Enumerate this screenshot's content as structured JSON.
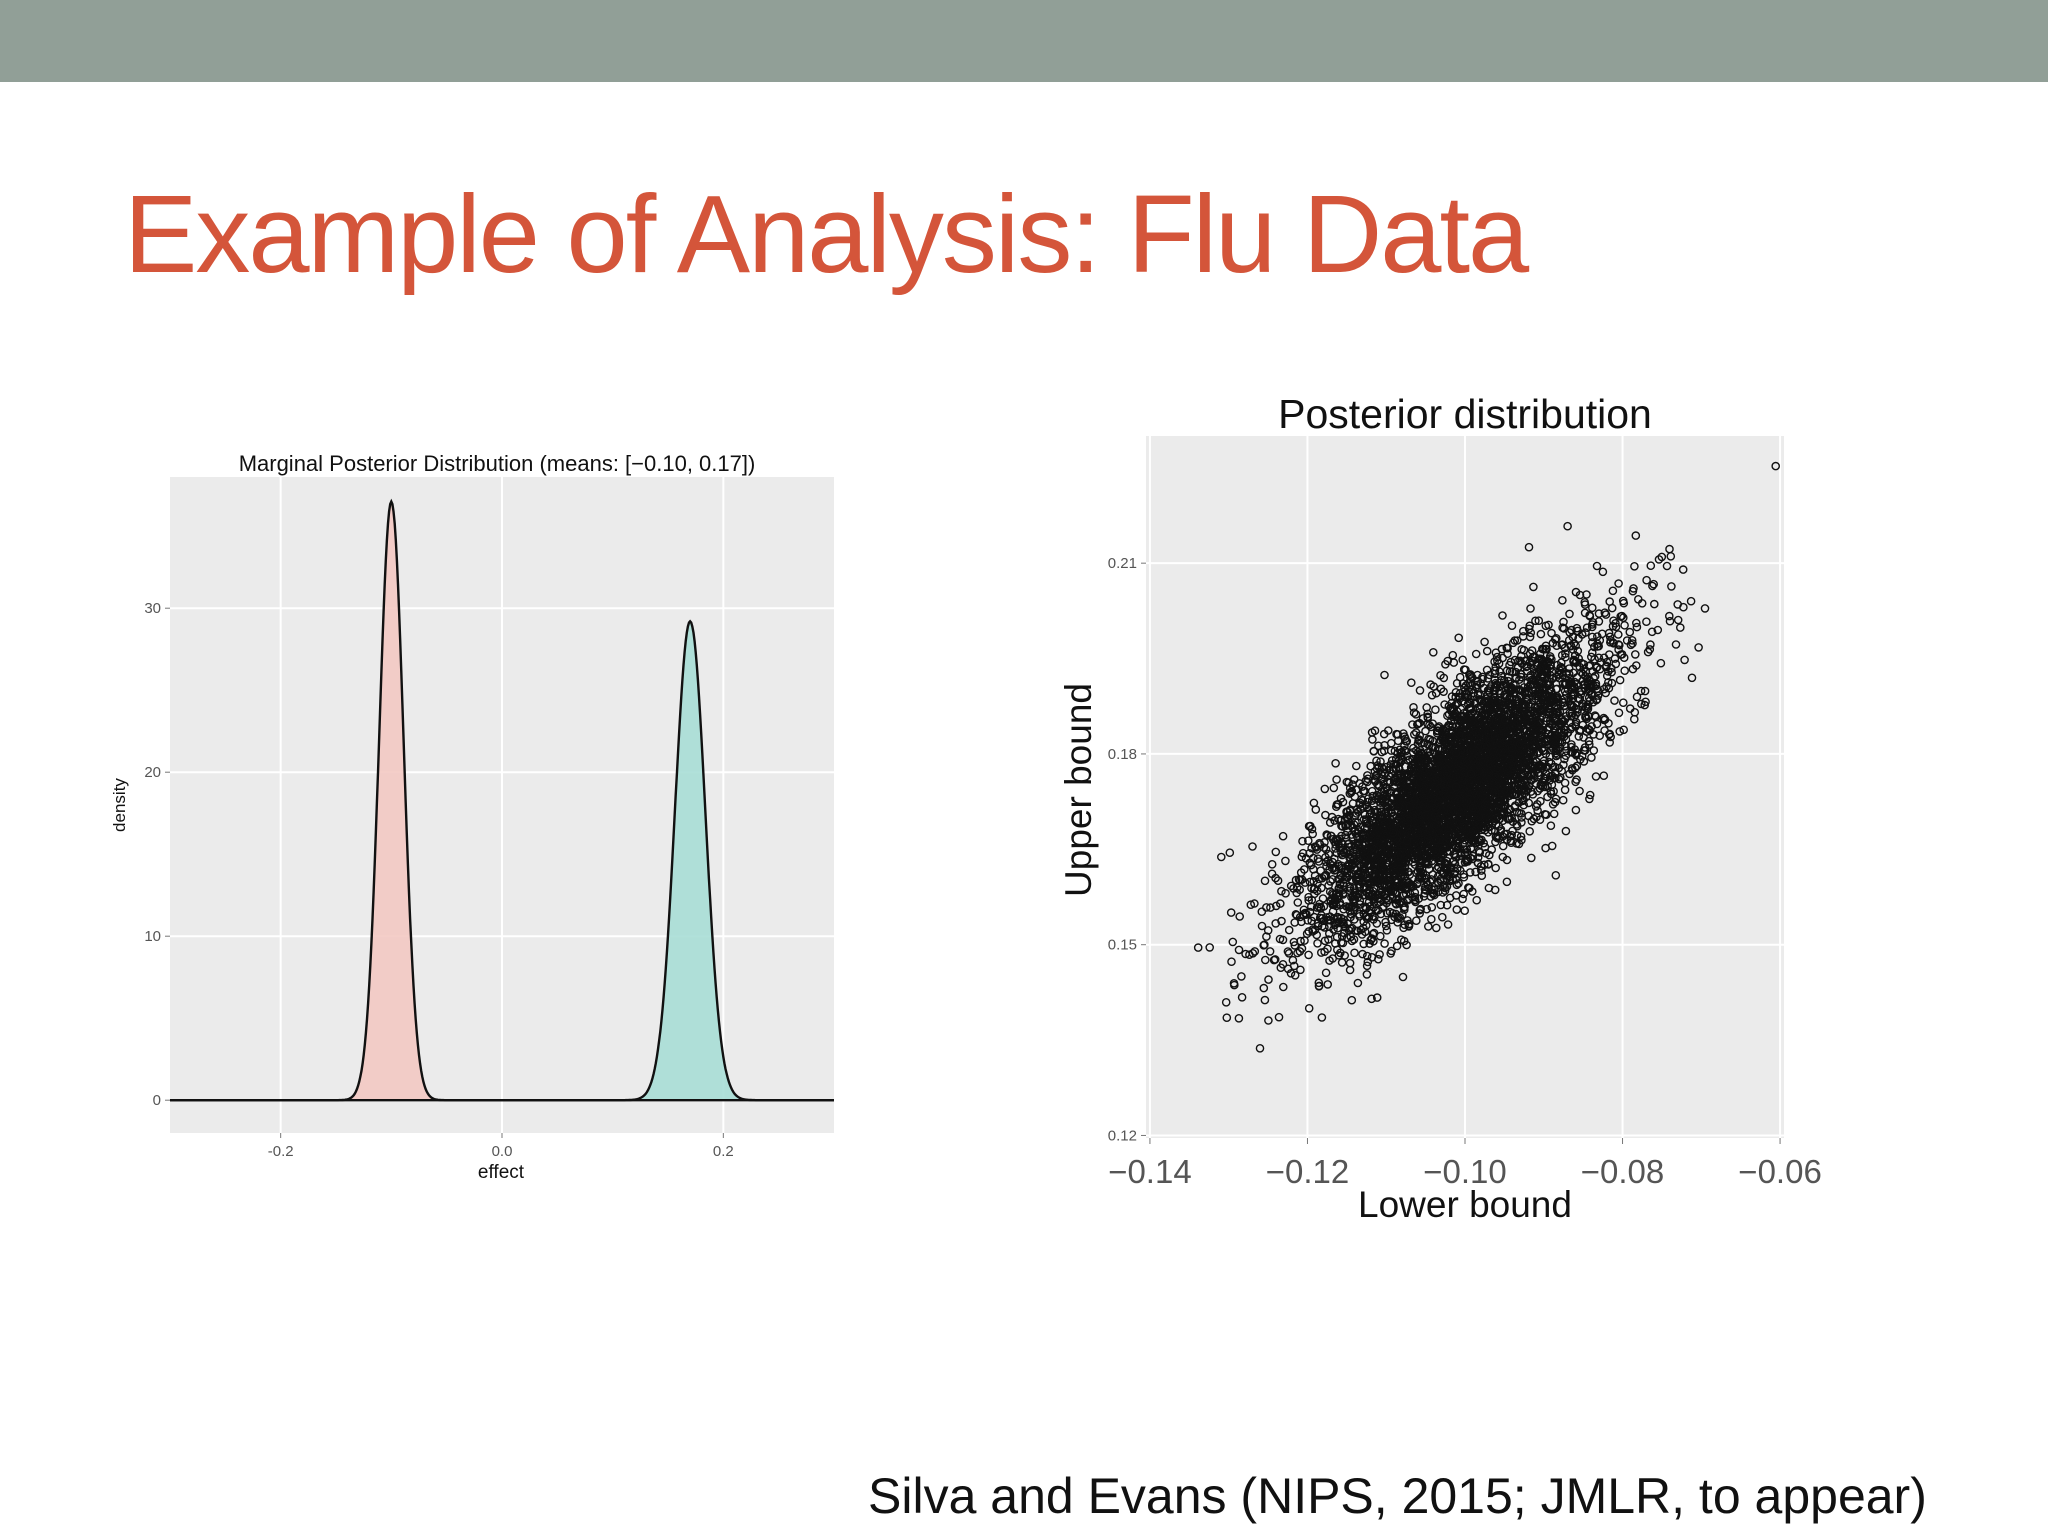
{
  "slide": {
    "title": "Example of Analysis: Flu Data",
    "citation": "Silva and Evans (NIPS, 2015; JMLR, to appear)",
    "colors": {
      "top_band": "#919f97",
      "title": "#d4553a",
      "panel_bg": "#ebebeb",
      "grid": "#ffffff",
      "density_fill_1": "#f3c9c3",
      "density_fill_2": "#a9ded6",
      "line": "#111111"
    }
  },
  "chart_data": [
    {
      "type": "area",
      "title": "Marginal Posterior Distribution (means: [−0.10, 0.17])",
      "xlabel": "effect",
      "ylabel": "density",
      "xlim": [
        -0.3,
        0.3
      ],
      "ylim": [
        -2,
        38
      ],
      "x_ticks": [
        -0.2,
        0.0,
        0.2
      ],
      "x_tick_labels": [
        "-0.2",
        "0.0",
        "0.2"
      ],
      "y_ticks": [
        0,
        10,
        20,
        30
      ],
      "y_tick_labels": [
        "0",
        "10",
        "20",
        "30"
      ],
      "grid": true,
      "legend": "none",
      "series": [
        {
          "mean": -0.1,
          "sd": 0.011,
          "peak_density": 36.5,
          "x_range": [
            -0.3,
            0.3
          ]
        },
        {
          "mean": 0.17,
          "sd": 0.0137,
          "peak_density": 29.2,
          "x_range": [
            -0.3,
            0.3
          ]
        }
      ]
    },
    {
      "type": "scatter",
      "title": "Posterior distribution",
      "xlabel": "Lower bound",
      "ylabel": "Upper bound",
      "xlim": [
        -0.1405,
        -0.0595
      ],
      "ylim": [
        0.1196,
        0.23
      ],
      "x_ticks": [
        -0.14,
        -0.12,
        -0.1,
        -0.08,
        -0.06
      ],
      "x_tick_labels": [
        "−0.14",
        "−0.12",
        "−0.10",
        "−0.08",
        "−0.06"
      ],
      "y_ticks": [
        0.12,
        0.15,
        0.18,
        0.21
      ],
      "y_tick_labels": [
        "0.12",
        "0.15",
        "0.18",
        "0.21"
      ],
      "grid": true,
      "legend": "none",
      "marker": "open-circle",
      "sample": {
        "n": 5000,
        "mean": [
          -0.101,
          0.1745
        ],
        "sd": [
          0.0093,
          0.0116
        ],
        "correlation": 0.78
      }
    }
  ]
}
